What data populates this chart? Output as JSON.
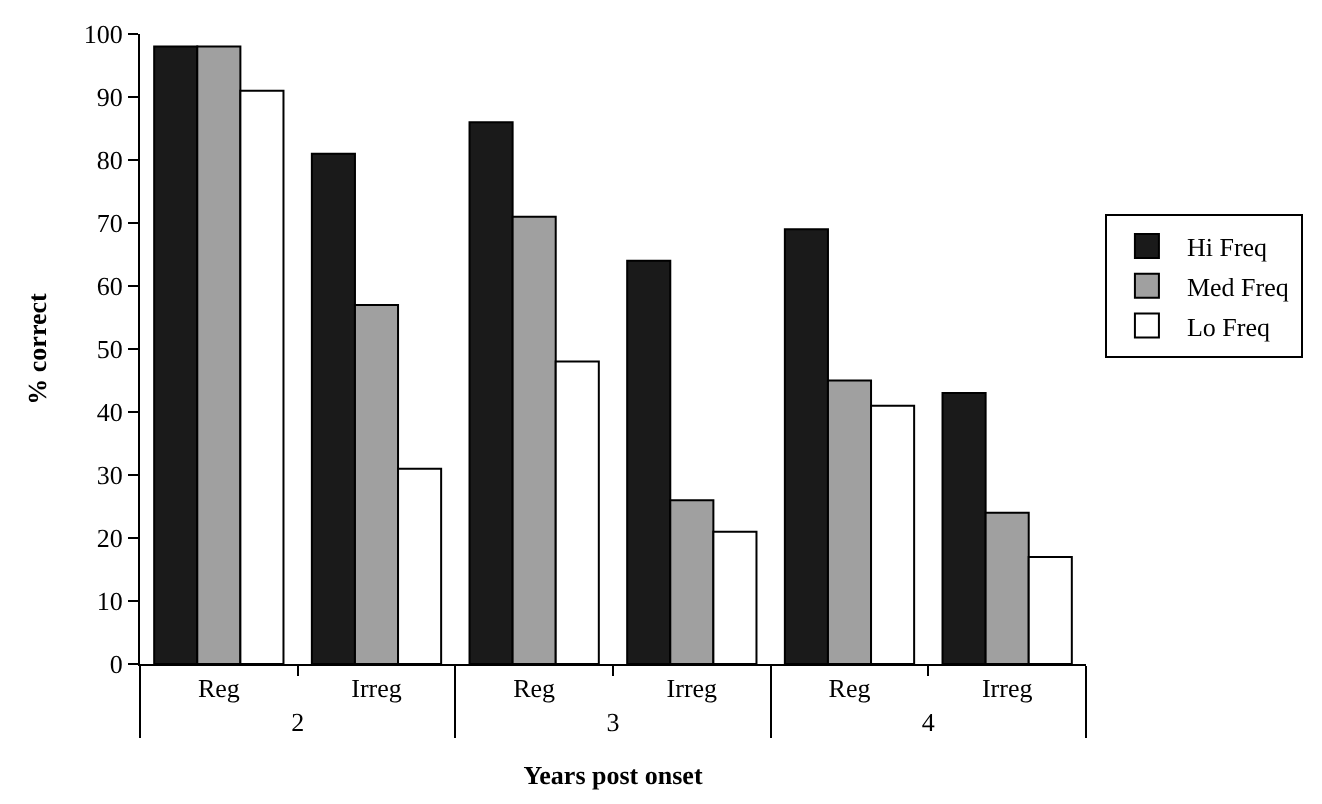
{
  "chart_data": {
    "type": "bar",
    "categories": [
      "Reg",
      "Irreg",
      "Reg",
      "Irreg",
      "Reg",
      "Irreg"
    ],
    "annotations": [
      "2",
      "3",
      "4"
    ],
    "xlabel": "Years post onset",
    "ylabel": "% correct",
    "series": [
      {
        "name": "Hi Freq",
        "color": "#1a1a1a",
        "values": [
          98,
          81,
          86,
          64,
          69,
          43
        ]
      },
      {
        "name": "Med Freq",
        "color": "#a0a0a0",
        "values": [
          98,
          57,
          71,
          26,
          45,
          24
        ]
      },
      {
        "name": "Lo Freq",
        "color": "#ffffff",
        "values": [
          91,
          31,
          48,
          21,
          41,
          17
        ]
      }
    ],
    "ylim": [
      0,
      100
    ],
    "yticks": [
      0,
      10,
      20,
      30,
      40,
      50,
      60,
      70,
      80,
      90,
      100
    ],
    "grid": false,
    "legend": "right"
  }
}
